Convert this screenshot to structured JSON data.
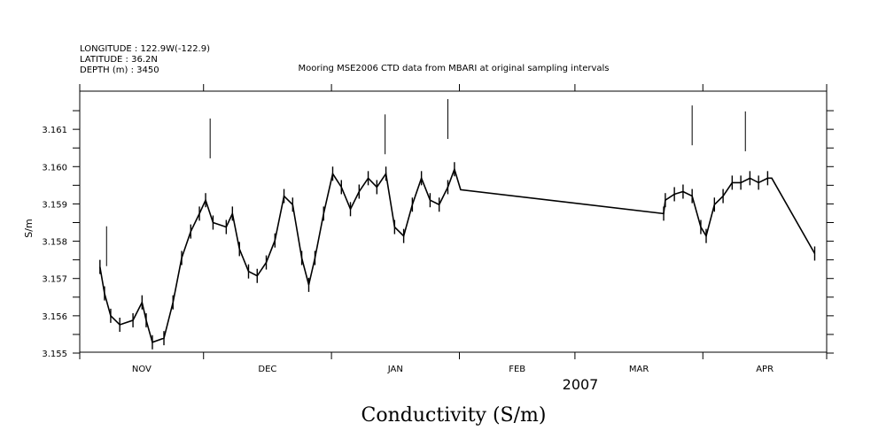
{
  "header": {
    "longitude": "LONGITUDE : 122.9W(-122.9)",
    "latitude": "LATITUDE : 36.2N",
    "depth": "DEPTH (m) : 3450"
  },
  "chart_data": {
    "type": "line",
    "title": "Mooring MSE2006 CTD data from MBARI at original sampling intervals",
    "xlabel": "2007",
    "ylabel": "S/m",
    "bottom_title": "Conductivity (S/m)",
    "x_units": "days since 2006-11-01",
    "xlim": [
      0,
      181
    ],
    "ylim": [
      3.155,
      3.162
    ],
    "yticks": [
      3.155,
      3.156,
      3.157,
      3.158,
      3.159,
      3.16,
      3.161
    ],
    "ytick_labels": [
      "3.155",
      "3.156",
      "3.157",
      "3.158",
      "3.159",
      "3.160",
      "3.161"
    ],
    "month_ticks": [
      0,
      30,
      61,
      92,
      120,
      151,
      181
    ],
    "month_labels": [
      {
        "label": "NOV",
        "day": 15
      },
      {
        "label": "DEC",
        "day": 45.5
      },
      {
        "label": "JAN",
        "day": 76.5
      },
      {
        "label": "FEB",
        "day": 106
      },
      {
        "label": "MAR",
        "day": 135.5
      },
      {
        "label": "APR",
        "day": 166
      }
    ],
    "grid": false,
    "series": [
      {
        "name": "conductivity",
        "points": [
          [
            4.9,
            3.15731
          ],
          [
            6.0,
            3.1566
          ],
          [
            7.5,
            3.156
          ],
          [
            9.7,
            3.15576
          ],
          [
            12.9,
            3.15588
          ],
          [
            15.1,
            3.15636
          ],
          [
            16.1,
            3.15588
          ],
          [
            17.6,
            3.15529
          ],
          [
            20.4,
            3.1554
          ],
          [
            22.6,
            3.15636
          ],
          [
            24.7,
            3.15755
          ],
          [
            26.9,
            3.15826
          ],
          [
            29.0,
            3.15874
          ],
          [
            30.5,
            3.1591
          ],
          [
            32.3,
            3.1585
          ],
          [
            35.5,
            3.15838
          ],
          [
            37.0,
            3.15874
          ],
          [
            38.7,
            3.15779
          ],
          [
            40.9,
            3.15719
          ],
          [
            43.0,
            3.15707
          ],
          [
            45.2,
            3.15743
          ],
          [
            47.3,
            3.15802
          ],
          [
            49.5,
            3.15921
          ],
          [
            51.6,
            3.15898
          ],
          [
            53.8,
            3.15755
          ],
          [
            55.5,
            3.15683
          ],
          [
            57.0,
            3.15755
          ],
          [
            59.1,
            3.15874
          ],
          [
            61.3,
            3.15981
          ],
          [
            63.4,
            3.15945
          ],
          [
            65.6,
            3.15886
          ],
          [
            67.7,
            3.15933
          ],
          [
            69.9,
            3.15969
          ],
          [
            72.0,
            3.15945
          ],
          [
            74.2,
            3.15981
          ],
          [
            76.3,
            3.15838
          ],
          [
            78.5,
            3.15814
          ],
          [
            80.6,
            3.15898
          ],
          [
            82.8,
            3.15969
          ],
          [
            84.9,
            3.1591
          ],
          [
            87.1,
            3.15898
          ],
          [
            89.2,
            3.15945
          ],
          [
            90.8,
            3.15993
          ],
          [
            92.3,
            3.15938
          ],
          [
            141.5,
            3.15874
          ],
          [
            141.9,
            3.1591
          ],
          [
            144.1,
            3.15926
          ],
          [
            146.2,
            3.15933
          ],
          [
            148.4,
            3.15921
          ],
          [
            150.5,
            3.15838
          ],
          [
            151.8,
            3.15814
          ],
          [
            153.8,
            3.15898
          ],
          [
            155.9,
            3.15921
          ],
          [
            158.1,
            3.15957
          ],
          [
            160.2,
            3.15957
          ],
          [
            162.4,
            3.15969
          ],
          [
            164.5,
            3.15957
          ],
          [
            166.7,
            3.15969
          ],
          [
            167.7,
            3.15969
          ],
          [
            178.1,
            3.15767
          ]
        ]
      },
      {
        "name": "peaks",
        "points": [
          [
            6.5,
            3.1584
          ],
          [
            31.6,
            3.16129
          ],
          [
            74.0,
            3.1614
          ],
          [
            89.2,
            3.16181
          ],
          [
            148.4,
            3.16164
          ],
          [
            161.3,
            3.16148
          ]
        ]
      }
    ]
  }
}
